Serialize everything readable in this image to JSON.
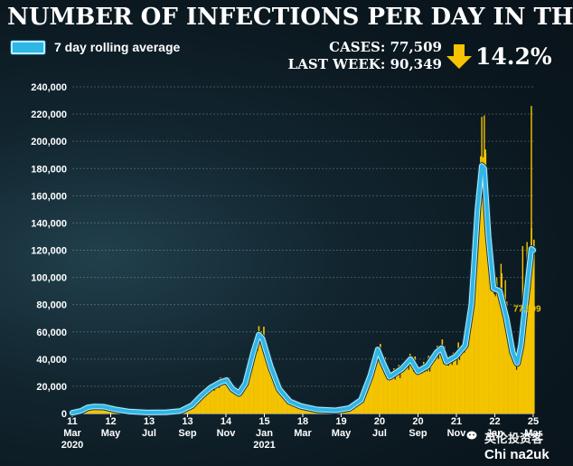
{
  "header": {
    "title": "NUMBER OF INFECTIONS PER DAY IN THE UK",
    "legend_label": "7 day rolling average",
    "cases_line": "CASES: 77,509",
    "last_week_line": "LAST WEEK: 90,349",
    "change": "14.2%",
    "change_direction": "down"
  },
  "colors": {
    "bars": "#f5c400",
    "line": "#2eb6e6",
    "line_outline": "#bfeaf8",
    "arrow": "#f5c400",
    "latest_label": "#f5c400"
  },
  "watermark": {
    "text": "英伦投资客",
    "sub": "Chi na2uk"
  },
  "chart_data": {
    "type": "bar",
    "title": "NUMBER OF INFECTIONS PER DAY IN THE UK",
    "ylim": [
      0,
      240000
    ],
    "yticks": [
      0,
      20000,
      40000,
      60000,
      80000,
      100000,
      120000,
      140000,
      160000,
      180000,
      200000,
      220000,
      240000
    ],
    "ytick_labels": [
      "0",
      "20,000",
      "40,000",
      "60,000",
      "80,000",
      "100,000",
      "120,000",
      "140,000",
      "160,000",
      "180,000",
      "200,000",
      "220,000",
      "240,000"
    ],
    "grid": true,
    "x_start": "2020-03-11",
    "x_end": "2022-03-25",
    "xticks": [
      {
        "date": "2020-03-11",
        "day": "11",
        "month": "Mar",
        "year": "2020"
      },
      {
        "date": "2020-05-12",
        "day": "12",
        "month": "May",
        "year": ""
      },
      {
        "date": "2020-07-13",
        "day": "13",
        "month": "Jul",
        "year": ""
      },
      {
        "date": "2020-09-13",
        "day": "13",
        "month": "Sep",
        "year": ""
      },
      {
        "date": "2020-11-14",
        "day": "14",
        "month": "Nov",
        "year": ""
      },
      {
        "date": "2021-01-15",
        "day": "15",
        "month": "Jan",
        "year": "2021"
      },
      {
        "date": "2021-03-18",
        "day": "18",
        "month": "Mar",
        "year": ""
      },
      {
        "date": "2021-05-19",
        "day": "19",
        "month": "May",
        "year": ""
      },
      {
        "date": "2021-07-20",
        "day": "20",
        "month": "Jul",
        "year": ""
      },
      {
        "date": "2021-09-20",
        "day": "20",
        "month": "Sep",
        "year": ""
      },
      {
        "date": "2021-11-21",
        "day": "21",
        "month": "Nov",
        "year": ""
      },
      {
        "date": "2022-01-22",
        "day": "22",
        "month": "Jan",
        "year": ""
      },
      {
        "date": "2022-03-25",
        "day": "25",
        "month": "Mar",
        "year": ""
      }
    ],
    "series": [
      {
        "name": "7 day rolling average",
        "points": [
          [
            "2020-03-11",
            500
          ],
          [
            "2020-03-25",
            2000
          ],
          [
            "2020-04-05",
            4500
          ],
          [
            "2020-04-15",
            5200
          ],
          [
            "2020-05-01",
            5000
          ],
          [
            "2020-05-20",
            3000
          ],
          [
            "2020-06-10",
            1500
          ],
          [
            "2020-07-10",
            700
          ],
          [
            "2020-08-10",
            900
          ],
          [
            "2020-09-01",
            1800
          ],
          [
            "2020-09-20",
            6000
          ],
          [
            "2020-10-05",
            13000
          ],
          [
            "2020-10-20",
            19000
          ],
          [
            "2020-11-05",
            23000
          ],
          [
            "2020-11-15",
            24500
          ],
          [
            "2020-11-25",
            18000
          ],
          [
            "2020-12-05",
            15000
          ],
          [
            "2020-12-15",
            22000
          ],
          [
            "2020-12-28",
            45000
          ],
          [
            "2021-01-06",
            58000
          ],
          [
            "2021-01-12",
            55000
          ],
          [
            "2021-01-25",
            35000
          ],
          [
            "2021-02-08",
            18000
          ],
          [
            "2021-02-25",
            9000
          ],
          [
            "2021-03-15",
            5500
          ],
          [
            "2021-04-10",
            3000
          ],
          [
            "2021-05-10",
            2300
          ],
          [
            "2021-06-01",
            4000
          ],
          [
            "2021-06-20",
            10000
          ],
          [
            "2021-07-05",
            28000
          ],
          [
            "2021-07-17",
            47000
          ],
          [
            "2021-07-25",
            38000
          ],
          [
            "2021-08-05",
            27000
          ],
          [
            "2021-08-25",
            33000
          ],
          [
            "2021-09-08",
            40000
          ],
          [
            "2021-09-20",
            31000
          ],
          [
            "2021-10-05",
            35000
          ],
          [
            "2021-10-20",
            45000
          ],
          [
            "2021-10-28",
            48000
          ],
          [
            "2021-11-05",
            38000
          ],
          [
            "2021-11-20",
            42000
          ],
          [
            "2021-12-05",
            50000
          ],
          [
            "2021-12-15",
            80000
          ],
          [
            "2021-12-25",
            150000
          ],
          [
            "2022-01-01",
            182000
          ],
          [
            "2022-01-05",
            180000
          ],
          [
            "2022-01-12",
            130000
          ],
          [
            "2022-01-20",
            92000
          ],
          [
            "2022-01-30",
            90000
          ],
          [
            "2022-02-10",
            70000
          ],
          [
            "2022-02-20",
            45000
          ],
          [
            "2022-02-27",
            37000
          ],
          [
            "2022-03-05",
            50000
          ],
          [
            "2022-03-12",
            80000
          ],
          [
            "2022-03-18",
            105000
          ],
          [
            "2022-03-22",
            121000
          ],
          [
            "2022-03-25",
            120000
          ]
        ]
      }
    ],
    "spikes": [
      [
        "2021-12-29",
        189000
      ],
      [
        "2021-12-31",
        218000
      ],
      [
        "2022-01-04",
        219000
      ],
      [
        "2022-01-06",
        194000
      ],
      [
        "2022-01-17",
        115000
      ],
      [
        "2022-01-24",
        100000
      ],
      [
        "2022-01-31",
        110000
      ],
      [
        "2022-02-07",
        98000
      ],
      [
        "2022-03-07",
        123000
      ],
      [
        "2022-03-14",
        126000
      ],
      [
        "2022-03-21",
        226000
      ]
    ],
    "latest": {
      "date": "2022-03-25",
      "value": 77509,
      "label": "77,509"
    }
  }
}
